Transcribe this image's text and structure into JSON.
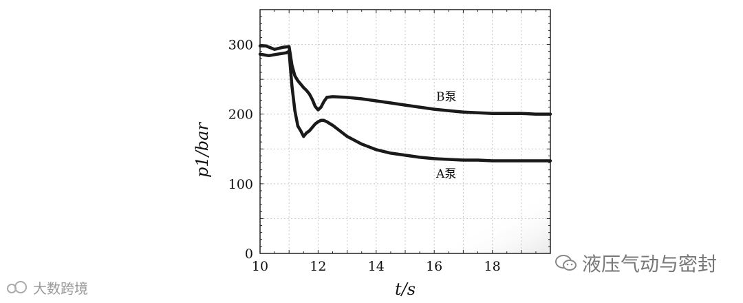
{
  "chart_data": {
    "type": "line",
    "xlabel": "t/s",
    "ylabel": "p1/bar",
    "xlim": [
      10,
      20
    ],
    "ylim": [
      0,
      350
    ],
    "xticks": [
      "10",
      "12",
      "14",
      "16",
      "18"
    ],
    "yticks": [
      "0",
      "100",
      "200",
      "300"
    ],
    "grid": true,
    "series": [
      {
        "name": "B泵",
        "color": "#1a1a1a",
        "x": [
          10.0,
          10.2,
          10.5,
          10.8,
          11.0,
          11.1,
          11.2,
          11.3,
          11.4,
          11.5,
          11.6,
          11.7,
          11.8,
          11.9,
          12.0,
          12.1,
          12.2,
          12.3,
          12.5,
          13.0,
          13.5,
          14.0,
          14.5,
          15.0,
          15.5,
          16.0,
          16.5,
          17.0,
          17.5,
          18.0,
          18.5,
          19.0,
          19.5,
          20.0
        ],
        "y": [
          298,
          298,
          293,
          296,
          297,
          270,
          255,
          248,
          243,
          238,
          234,
          229,
          221,
          211,
          206,
          210,
          218,
          224,
          225,
          224,
          222,
          219,
          216,
          213,
          210,
          207,
          205,
          203,
          202,
          201,
          201,
          201,
          200,
          200
        ]
      },
      {
        "name": "A泵",
        "color": "#1a1a1a",
        "x": [
          10.0,
          10.3,
          10.6,
          10.9,
          11.0,
          11.1,
          11.2,
          11.3,
          11.4,
          11.5,
          11.6,
          11.7,
          11.8,
          11.9,
          12.0,
          12.1,
          12.2,
          12.3,
          12.5,
          13.0,
          13.5,
          14.0,
          14.5,
          15.0,
          15.5,
          16.0,
          16.5,
          17.0,
          17.5,
          18.0,
          18.5,
          19.0,
          19.5,
          20.0
        ],
        "y": [
          286,
          284,
          286,
          288,
          290,
          240,
          205,
          183,
          176,
          168,
          173,
          176,
          181,
          186,
          189,
          191,
          191,
          189,
          184,
          168,
          157,
          149,
          144,
          141,
          138,
          136,
          135,
          134,
          134,
          133,
          133,
          133,
          133,
          133
        ]
      }
    ]
  },
  "watermarks": {
    "right": "液压气动与密封",
    "left": "大数跨境"
  }
}
